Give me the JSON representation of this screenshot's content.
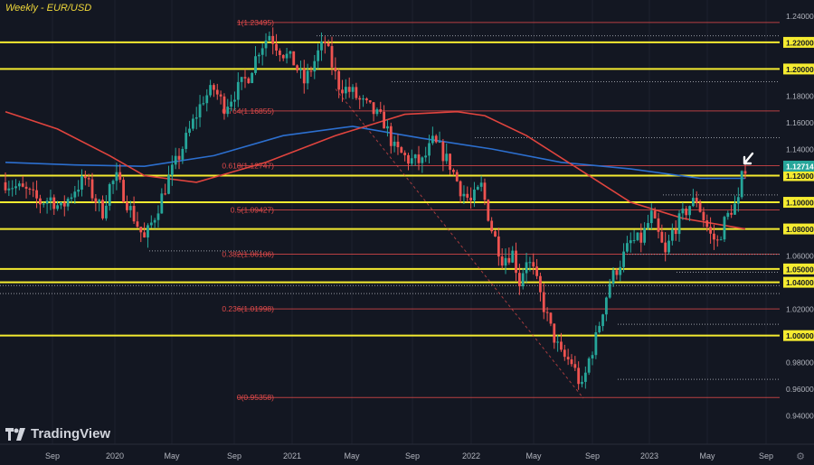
{
  "title": "Weekly - EUR/USD",
  "brand": "TradingView",
  "settings_icon": "gear-icon",
  "colors": {
    "background": "#131722",
    "axis_text": "#b2b5be",
    "fib": "#e24a4a",
    "support": "#f5eb30",
    "sma_blue": "#2c6fcf",
    "sma_red": "#e0443e",
    "up": "#26a69a",
    "down": "#ef5350",
    "last_price_bg": "#26a69a"
  },
  "chart_data": {
    "type": "candlestick",
    "symbol": "EUR/USD",
    "timeframe": "Weekly",
    "ylim": [
      0.93,
      1.245
    ],
    "y_ticks": [
      "1.24000",
      "1.22000",
      "1.20000",
      "1.18000",
      "1.16000",
      "1.14000",
      "1.12000",
      "1.10000",
      "1.08000",
      "1.06000",
      "1.05000",
      "1.04000",
      "1.02000",
      "1.00000",
      "0.98000",
      "0.96000",
      "0.94000"
    ],
    "x_ticks": [
      "Sep",
      "2020",
      "May",
      "Sep",
      "2021",
      "May",
      "Sep",
      "2022",
      "May",
      "Sep",
      "2023",
      "May",
      "Sep"
    ],
    "last_price": "1.12714",
    "horizontal_levels": [
      1.22,
      1.2,
      1.12,
      1.1,
      1.08,
      1.05,
      1.04,
      1.0
    ],
    "horizontal_level_labels": [
      "1.22000",
      "1.20000",
      "1.12000",
      "1.10000",
      "1.08000",
      "1.05000",
      "1.04000",
      "1.00000"
    ],
    "fibonacci": [
      {
        "label": "1(1.23495)",
        "value": 1.23495
      },
      {
        "label": "0.764(1.16855)",
        "value": 1.16855
      },
      {
        "label": "0.618(1.12747)",
        "value": 1.12747
      },
      {
        "label": "0.5(1.09427)",
        "value": 1.09427
      },
      {
        "label": "0.382(1.06106)",
        "value": 1.06106
      },
      {
        "label": "0.236(1.01998)",
        "value": 1.01998
      },
      {
        "label": "0(0.95358)",
        "value": 0.95358
      }
    ],
    "close_path": [
      [
        0,
        1.115
      ],
      [
        6,
        1.108
      ],
      [
        10,
        1.1
      ],
      [
        13,
        1.103
      ],
      [
        16,
        1.095
      ],
      [
        20,
        1.11
      ],
      [
        23,
        1.118
      ],
      [
        25,
        1.106
      ],
      [
        28,
        1.093
      ],
      [
        30,
        1.112
      ],
      [
        32,
        1.118
      ],
      [
        35,
        1.1
      ],
      [
        40,
        1.072
      ],
      [
        43,
        1.09
      ],
      [
        47,
        1.118
      ],
      [
        50,
        1.135
      ],
      [
        54,
        1.16
      ],
      [
        57,
        1.178
      ],
      [
        60,
        1.185
      ],
      [
        63,
        1.172
      ],
      [
        66,
        1.182
      ],
      [
        70,
        1.195
      ],
      [
        73,
        1.215
      ],
      [
        76,
        1.226
      ],
      [
        78,
        1.218
      ],
      [
        80,
        1.212
      ],
      [
        83,
        1.205
      ],
      [
        86,
        1.19
      ],
      [
        88,
        1.2
      ],
      [
        90,
        1.212
      ],
      [
        92,
        1.22
      ],
      [
        94,
        1.203
      ],
      [
        96,
        1.188
      ],
      [
        100,
        1.182
      ],
      [
        102,
        1.176
      ],
      [
        105,
        1.17
      ],
      [
        109,
        1.16
      ],
      [
        112,
        1.14
      ],
      [
        116,
        1.132
      ],
      [
        120,
        1.13
      ],
      [
        123,
        1.145
      ],
      [
        125,
        1.14
      ],
      [
        128,
        1.128
      ],
      [
        131,
        1.11
      ],
      [
        134,
        1.1
      ],
      [
        137,
        1.112
      ],
      [
        140,
        1.08
      ],
      [
        143,
        1.058
      ],
      [
        146,
        1.062
      ],
      [
        148,
        1.04
      ],
      [
        150,
        1.058
      ],
      [
        152,
        1.048
      ],
      [
        154,
        1.03
      ],
      [
        157,
        1.005
      ],
      [
        160,
        0.985
      ],
      [
        163,
        0.98
      ],
      [
        166,
        0.96
      ],
      [
        168,
        0.982
      ],
      [
        170,
        0.998
      ],
      [
        172,
        1.02
      ],
      [
        174,
        1.04
      ],
      [
        177,
        1.055
      ],
      [
        180,
        1.07
      ],
      [
        183,
        1.072
      ],
      [
        186,
        1.09
      ],
      [
        188,
        1.075
      ],
      [
        190,
        1.06
      ],
      [
        192,
        1.078
      ],
      [
        195,
        1.09
      ],
      [
        197,
        1.098
      ],
      [
        199,
        1.102
      ],
      [
        201,
        1.088
      ],
      [
        203,
        1.075
      ],
      [
        205,
        1.07
      ],
      [
        207,
        1.085
      ],
      [
        209,
        1.095
      ],
      [
        211,
        1.1
      ],
      [
        212,
        1.118
      ],
      [
        213,
        1.127
      ]
    ],
    "moving_averages": [
      {
        "color": "blue",
        "points": [
          [
            0,
            1.13
          ],
          [
            20,
            1.128
          ],
          [
            40,
            1.127
          ],
          [
            60,
            1.135
          ],
          [
            80,
            1.15
          ],
          [
            100,
            1.157
          ],
          [
            120,
            1.148
          ],
          [
            140,
            1.14
          ],
          [
            160,
            1.13
          ],
          [
            180,
            1.125
          ],
          [
            200,
            1.118
          ],
          [
            213,
            1.118
          ]
        ]
      },
      {
        "color": "red",
        "points": [
          [
            0,
            1.168
          ],
          [
            15,
            1.155
          ],
          [
            30,
            1.135
          ],
          [
            40,
            1.12
          ],
          [
            55,
            1.115
          ],
          [
            75,
            1.13
          ],
          [
            95,
            1.15
          ],
          [
            115,
            1.166
          ],
          [
            130,
            1.168
          ],
          [
            138,
            1.165
          ],
          [
            150,
            1.15
          ],
          [
            165,
            1.125
          ],
          [
            180,
            1.1
          ],
          [
            195,
            1.088
          ],
          [
            213,
            1.08
          ]
        ]
      }
    ]
  }
}
